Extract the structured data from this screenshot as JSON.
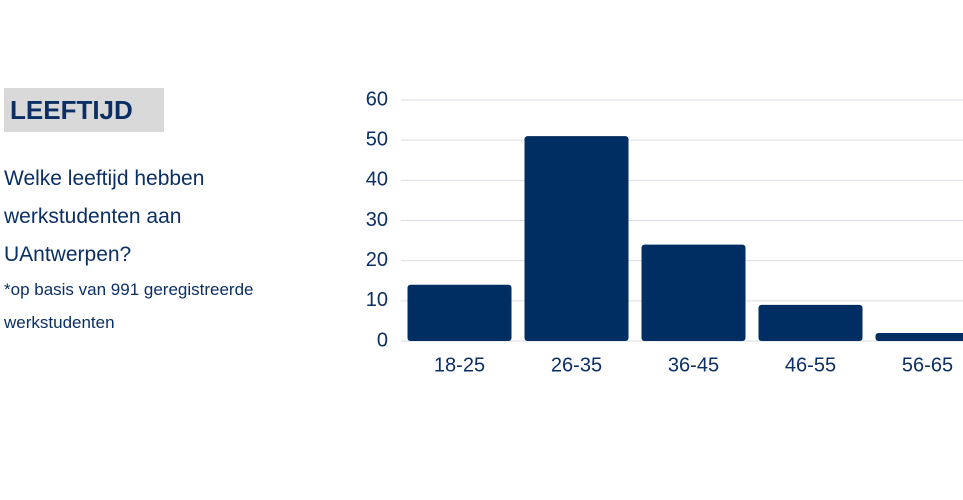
{
  "header": {
    "title": "LEEFTIJD"
  },
  "question": "Welke leeftijd hebben werkstudenten aan UAntwerpen?",
  "note": "*op basis van 991 geregistreerde werkstudenten",
  "chart_data": {
    "type": "bar",
    "categories": [
      "18-25",
      "26-35",
      "36-45",
      "46-55",
      "56-65"
    ],
    "values": [
      14,
      51,
      24,
      9,
      2
    ],
    "color": "#002d62",
    "ylim": [
      0,
      60
    ],
    "yticks": [
      0,
      10,
      20,
      30,
      40,
      50,
      60
    ],
    "grid": true
  }
}
